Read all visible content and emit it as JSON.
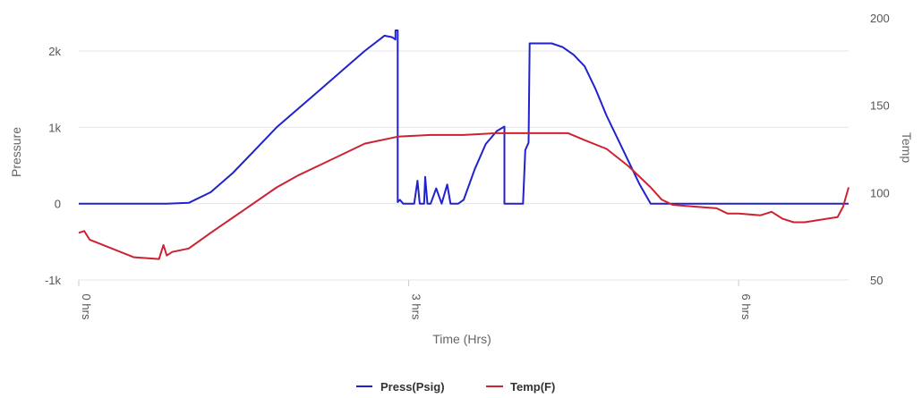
{
  "chart_data": {
    "type": "line",
    "xlabel": "Time (Hrs)",
    "x_ticks": [
      {
        "value": 0,
        "label": "0 hrs"
      },
      {
        "value": 3,
        "label": "3 hrs"
      },
      {
        "value": 6,
        "label": "6 hrs"
      }
    ],
    "xlim": [
      0,
      7
    ],
    "grid": true,
    "legend_position": "bottom-center",
    "left_axis": {
      "label": "Pressure",
      "ylim": [
        -1000,
        2400
      ],
      "ticks": [
        {
          "value": 2000,
          "label": "2k"
        },
        {
          "value": 1000,
          "label": "1k"
        },
        {
          "value": 0,
          "label": "0"
        },
        {
          "value": -1000,
          "label": "-1k"
        }
      ]
    },
    "right_axis": {
      "label": "Temp",
      "ylim": [
        50,
        200
      ],
      "ticks": [
        {
          "value": 200,
          "label": "200"
        },
        {
          "value": 150,
          "label": "150"
        },
        {
          "value": 100,
          "label": "100"
        },
        {
          "value": 50,
          "label": "50"
        }
      ]
    },
    "series": [
      {
        "name": "Press(Psig)",
        "color": "#2222cc",
        "axis": "left",
        "points": [
          [
            0,
            0
          ],
          [
            0.8,
            0
          ],
          [
            1.0,
            10
          ],
          [
            1.2,
            150
          ],
          [
            1.4,
            400
          ],
          [
            1.6,
            700
          ],
          [
            1.8,
            1000
          ],
          [
            2.0,
            1250
          ],
          [
            2.2,
            1500
          ],
          [
            2.4,
            1750
          ],
          [
            2.6,
            2000
          ],
          [
            2.78,
            2200
          ],
          [
            2.85,
            2180
          ],
          [
            2.88,
            2150
          ],
          [
            2.88,
            2270
          ],
          [
            2.9,
            2270
          ],
          [
            2.9,
            20
          ],
          [
            2.92,
            50
          ],
          [
            2.95,
            0
          ],
          [
            3.0,
            0
          ],
          [
            3.05,
            0
          ],
          [
            3.08,
            300
          ],
          [
            3.1,
            0
          ],
          [
            3.14,
            0
          ],
          [
            3.15,
            350
          ],
          [
            3.17,
            0
          ],
          [
            3.2,
            0
          ],
          [
            3.25,
            200
          ],
          [
            3.3,
            0
          ],
          [
            3.35,
            250
          ],
          [
            3.38,
            0
          ],
          [
            3.45,
            0
          ],
          [
            3.5,
            50
          ],
          [
            3.6,
            450
          ],
          [
            3.7,
            780
          ],
          [
            3.8,
            950
          ],
          [
            3.87,
            1010
          ],
          [
            3.87,
            0
          ],
          [
            4.0,
            0
          ],
          [
            4.04,
            0
          ],
          [
            4.06,
            700
          ],
          [
            4.09,
            800
          ],
          [
            4.1,
            2100
          ],
          [
            4.2,
            2100
          ],
          [
            4.3,
            2100
          ],
          [
            4.4,
            2050
          ],
          [
            4.5,
            1950
          ],
          [
            4.6,
            1800
          ],
          [
            4.7,
            1500
          ],
          [
            4.8,
            1150
          ],
          [
            4.9,
            850
          ],
          [
            5.0,
            550
          ],
          [
            5.1,
            250
          ],
          [
            5.2,
            0
          ],
          [
            5.5,
            0
          ],
          [
            6.0,
            0
          ],
          [
            7.0,
            0
          ]
        ]
      },
      {
        "name": "Temp(F)",
        "color": "#cc2233",
        "axis": "right",
        "points": [
          [
            0,
            77
          ],
          [
            0.05,
            78
          ],
          [
            0.1,
            73
          ],
          [
            0.3,
            68
          ],
          [
            0.5,
            63
          ],
          [
            0.73,
            62
          ],
          [
            0.77,
            70
          ],
          [
            0.8,
            64
          ],
          [
            0.85,
            66
          ],
          [
            1.0,
            68
          ],
          [
            1.2,
            77
          ],
          [
            1.5,
            90
          ],
          [
            1.8,
            103
          ],
          [
            2.0,
            110
          ],
          [
            2.2,
            116
          ],
          [
            2.4,
            122
          ],
          [
            2.6,
            128
          ],
          [
            2.9,
            132
          ],
          [
            3.2,
            133
          ],
          [
            3.5,
            133
          ],
          [
            3.8,
            134
          ],
          [
            4.2,
            134
          ],
          [
            4.45,
            134
          ],
          [
            4.6,
            130
          ],
          [
            4.8,
            125
          ],
          [
            5.0,
            115
          ],
          [
            5.2,
            103
          ],
          [
            5.3,
            96
          ],
          [
            5.4,
            93
          ],
          [
            5.6,
            92
          ],
          [
            5.8,
            91
          ],
          [
            5.9,
            88
          ],
          [
            6.0,
            88
          ],
          [
            6.2,
            87
          ],
          [
            6.3,
            89
          ],
          [
            6.4,
            85
          ],
          [
            6.5,
            83
          ],
          [
            6.6,
            83
          ],
          [
            6.8,
            85
          ],
          [
            6.9,
            86
          ],
          [
            6.95,
            92
          ],
          [
            7.0,
            103
          ]
        ]
      }
    ]
  }
}
